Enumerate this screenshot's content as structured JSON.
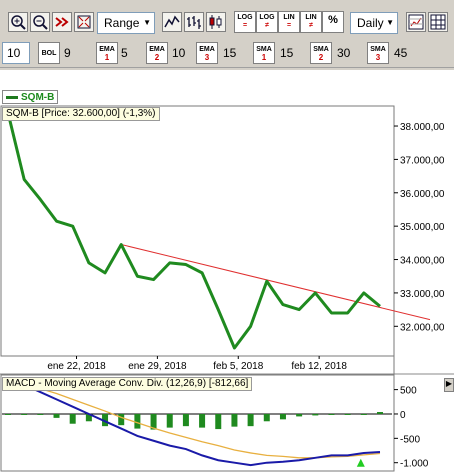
{
  "toolbar": {
    "range_label": "Range",
    "period_label": "Daily",
    "log_btns": [
      {
        "top": "LOG",
        "bottom": "="
      },
      {
        "top": "LOG",
        "bottom": "≠"
      },
      {
        "top": "LIN",
        "bottom": "="
      },
      {
        "top": "LIN",
        "bottom": "≠"
      },
      {
        "top": "%",
        "bottom": ""
      }
    ]
  },
  "indicators": {
    "first_value": "10",
    "bol_label": "BOL",
    "bol_value": "9",
    "items": [
      {
        "label": "EMA",
        "index": "1",
        "value": "5"
      },
      {
        "label": "EMA",
        "index": "2",
        "value": "10"
      },
      {
        "label": "EMA",
        "index": "3",
        "value": "15"
      },
      {
        "label": "SMA",
        "index": "1",
        "value": "15"
      },
      {
        "label": "SMA",
        "index": "2",
        "value": "30"
      },
      {
        "label": "SMA",
        "index": "3",
        "value": "45"
      }
    ]
  },
  "chart": {
    "legend": "SQM-B",
    "price_label": "SQM-B [Price: 32.600,00] (-1,3%)",
    "macd_label": "MACD - Moving Average Conv. Div. (12,26,9) [-812,66]",
    "price_ticks": [
      "38.000,00",
      "37.000,00",
      "36.000,00",
      "35.000,00",
      "34.000,00",
      "33.000,00",
      "32.000,00"
    ],
    "date_ticks": [
      "ene 22, 2018",
      "ene 29, 2018",
      "feb 5, 2018",
      "feb 12, 2018"
    ],
    "macd_ticks": [
      "500",
      "0",
      "-500",
      "-1.000"
    ],
    "colors": {
      "price": "#1f8a1f",
      "trend": "#e03030",
      "macd": "#1a1aa8",
      "signal": "#e8b040",
      "hist": "#1f8a1f"
    }
  },
  "chart_data": {
    "type": "line",
    "title": "SQM-B [Price: 32.600,00] (-1,3%)",
    "series": [
      {
        "name": "SQM-B",
        "values": [
          38400,
          36400,
          35800,
          35150,
          35000,
          33900,
          33600,
          34450,
          33500,
          33400,
          33900,
          33850,
          33600,
          32500,
          31350,
          32000,
          33350,
          32650,
          32500,
          33000,
          32400,
          32400,
          33000,
          32600
        ]
      }
    ],
    "ylim": [
      31200,
      38600
    ],
    "macd": {
      "macd": [
        700,
        600,
        450,
        300,
        150,
        0,
        -150,
        -300,
        -450,
        -550,
        -650,
        -720,
        -850,
        -950,
        -1000,
        -1050,
        -1000,
        -980,
        -950,
        -900,
        -850,
        -850,
        -800,
        -780
      ],
      "signal": [
        700,
        600,
        520,
        420,
        300,
        180,
        60,
        -70,
        -180,
        -290,
        -390,
        -480,
        -570,
        -650,
        -740,
        -800,
        -850,
        -870,
        -900,
        -900,
        -880,
        -870,
        -840,
        -812
      ],
      "histogram": [
        0,
        0,
        0,
        -80,
        -200,
        -150,
        -250,
        -230,
        -300,
        -320,
        -280,
        -250,
        -280,
        -310,
        -260,
        -250,
        -150,
        -110,
        -50,
        -30,
        0,
        0,
        0,
        40
      ],
      "ylim": [
        -1150,
        800
      ]
    }
  }
}
